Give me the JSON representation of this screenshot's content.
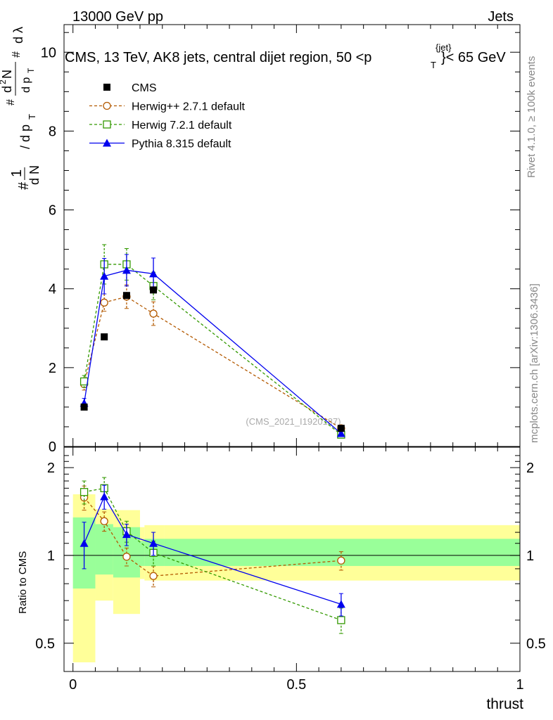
{
  "header": {
    "left": "13000 GeV pp",
    "right": "Jets",
    "title": "CMS, 13 TeV, AK8 jets, central dijet region, 50 <p",
    "title_sub": "T",
    "title_sup": "{jet}",
    "title_end": "}< 65 GeV"
  },
  "side": {
    "rivet": "Rivet 4.1.0, ≥ 100k events",
    "mcplots": "mcplots.cern.ch [arXiv:1306.3436]"
  },
  "watermark": "(CMS_2021_I1920187)",
  "colors": {
    "cms": "#000000",
    "herwigpp": "#b35900",
    "herwig7": "#339900",
    "pythia": "#0000ee",
    "band_inner": "#99ff99",
    "band_outer": "#ffff99"
  },
  "chart_data": [
    {
      "type": "line",
      "panel": "main",
      "ylabel": "1/N dN/dpT dλ",
      "xlim": [
        -0.02,
        1.0
      ],
      "ylim": [
        0,
        10.7
      ],
      "y_ticks": [
        "0",
        "2",
        "4",
        "6",
        "8",
        "10"
      ],
      "x": [
        0.025,
        0.07,
        0.12,
        0.18,
        0.6
      ],
      "series": [
        {
          "name": "CMS",
          "values": [
            1.0,
            2.78,
            3.83,
            3.97,
            0.46
          ],
          "style": "square-filled",
          "x_edges": [
            [
              0.0,
              0.05
            ],
            [
              0.05,
              0.09
            ],
            [
              0.09,
              0.15
            ],
            [
              0.15,
              0.21
            ],
            [
              0.21,
              1.0
            ]
          ]
        },
        {
          "name": "Herwig++ 2.7.1 default",
          "values": [
            1.58,
            3.65,
            3.8,
            3.37,
            0.46
          ],
          "errors": [
            0.15,
            0.22,
            0.3,
            0.3,
            0.05
          ],
          "style": "circle-dashed"
        },
        {
          "name": "Herwig 7.2.1 default",
          "values": [
            1.65,
            4.62,
            4.62,
            4.07,
            0.3
          ],
          "errors": [
            0.15,
            0.5,
            0.4,
            0.35,
            0.05
          ],
          "style": "square-open-dashed"
        },
        {
          "name": "Pythia 8.315 default",
          "values": [
            1.1,
            4.32,
            4.47,
            4.38,
            0.33
          ],
          "errors": [
            0.12,
            0.45,
            0.4,
            0.4,
            0.05
          ],
          "style": "triangle-solid"
        }
      ]
    },
    {
      "type": "line",
      "panel": "ratio",
      "xlabel": "thrust",
      "ylabel": "Ratio to CMS",
      "xlim": [
        -0.02,
        1.0
      ],
      "ylim": [
        0.4,
        2.35
      ],
      "y_scale": "log",
      "y_ticks": [
        "0.5",
        "1",
        "2"
      ],
      "x_ticks": [
        "0",
        "0.5",
        "1"
      ],
      "x": [
        0.025,
        0.07,
        0.12,
        0.18,
        0.6
      ],
      "bands": {
        "edges": [
          0.0,
          0.05,
          0.09,
          0.15,
          0.16,
          0.205,
          1.0
        ],
        "inner_low": [
          0.77,
          0.86,
          0.84,
          0.92,
          0.92,
          0.92
        ],
        "inner_high": [
          1.35,
          1.28,
          1.25,
          1.12,
          1.14,
          1.14
        ],
        "outer_low": [
          0.43,
          0.7,
          0.63,
          0.83,
          0.82,
          0.82
        ],
        "outer_high": [
          1.62,
          1.44,
          1.43,
          1.25,
          1.27,
          1.27
        ]
      },
      "series": [
        {
          "name": "Herwig++ 2.7.1 default",
          "values": [
            1.58,
            1.31,
            0.99,
            0.85,
            0.96
          ],
          "errors": [
            0.15,
            0.1,
            0.07,
            0.07,
            0.07
          ]
        },
        {
          "name": "Herwig 7.2.1 default",
          "values": [
            1.65,
            1.7,
            1.21,
            1.02,
            0.6
          ],
          "errors": [
            0.15,
            0.15,
            0.1,
            0.1,
            0.06
          ]
        },
        {
          "name": "Pythia 8.315 default",
          "values": [
            1.1,
            1.59,
            1.18,
            1.1,
            0.68
          ],
          "errors": [
            0.2,
            0.15,
            0.1,
            0.1,
            0.06
          ]
        }
      ]
    }
  ]
}
